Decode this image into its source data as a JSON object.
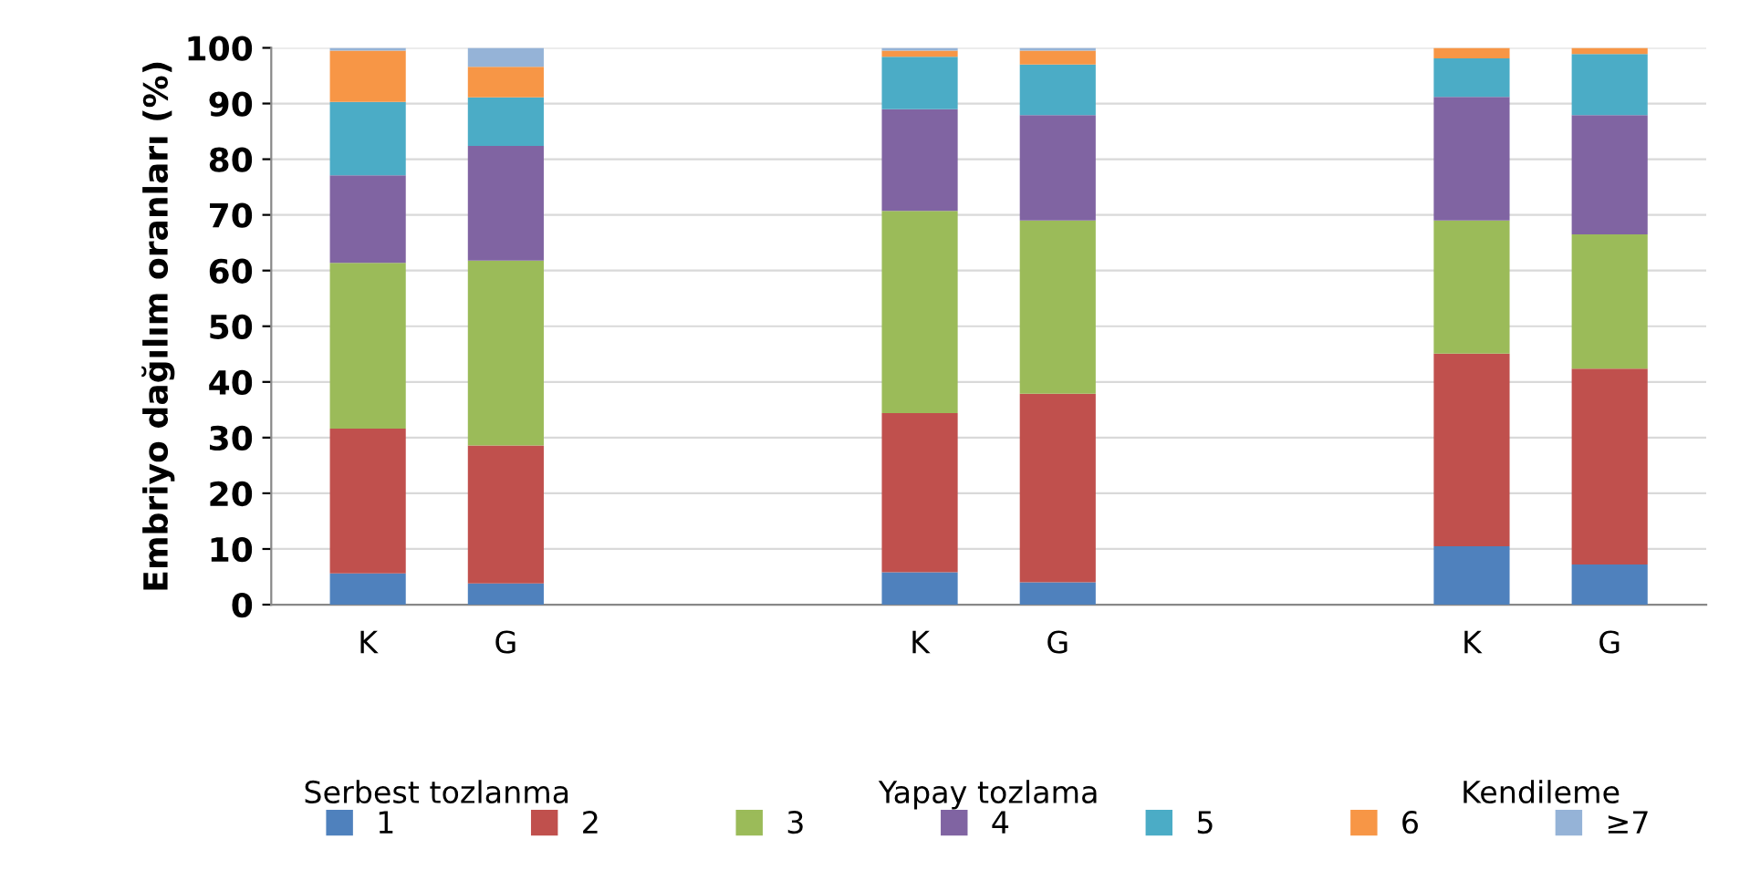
{
  "chart_data": {
    "type": "bar",
    "stacked": true,
    "ylabel": "Embriyo dağılım oranları (%)",
    "categories": [
      "K",
      "G",
      null,
      null,
      "K",
      "G",
      null,
      null,
      "K",
      "G"
    ],
    "series": [
      {
        "name": "1",
        "color": "#4f81bd",
        "values": [
          5.6,
          3.8,
          null,
          null,
          5.8,
          4.0,
          null,
          null,
          10.5,
          7.2
        ]
      },
      {
        "name": "2",
        "color": "#c0504d",
        "values": [
          26.0,
          24.8,
          null,
          null,
          28.6,
          33.9,
          null,
          null,
          34.6,
          35.2
        ]
      },
      {
        "name": "3",
        "color": "#9bbb59",
        "values": [
          29.8,
          33.2,
          null,
          null,
          36.3,
          31.1,
          null,
          null,
          23.9,
          24.1
        ]
      },
      {
        "name": "4",
        "color": "#8064a2",
        "values": [
          15.7,
          20.6,
          null,
          null,
          18.3,
          18.9,
          null,
          null,
          22.2,
          21.4
        ]
      },
      {
        "name": "5",
        "color": "#4bacc6",
        "values": [
          13.2,
          8.7,
          null,
          null,
          9.4,
          9.1,
          null,
          null,
          6.9,
          11.0
        ]
      },
      {
        "name": "6",
        "color": "#f79646",
        "values": [
          9.2,
          5.5,
          null,
          null,
          1.1,
          2.5,
          null,
          null,
          1.9,
          1.1
        ]
      },
      {
        "name": "≥7",
        "color": "#95b3d7",
        "values": [
          0.5,
          3.4,
          null,
          null,
          0.5,
          0.5,
          null,
          null,
          0,
          0
        ]
      }
    ],
    "ylim": [
      0,
      100
    ],
    "yticks": [
      0,
      10,
      20,
      30,
      40,
      50,
      60,
      70,
      80,
      90,
      100
    ],
    "grid": "y",
    "legend": "bottom",
    "annotations": [
      "Serbest tozlanma",
      "Yapay tozlama",
      "Kendileme"
    ]
  }
}
